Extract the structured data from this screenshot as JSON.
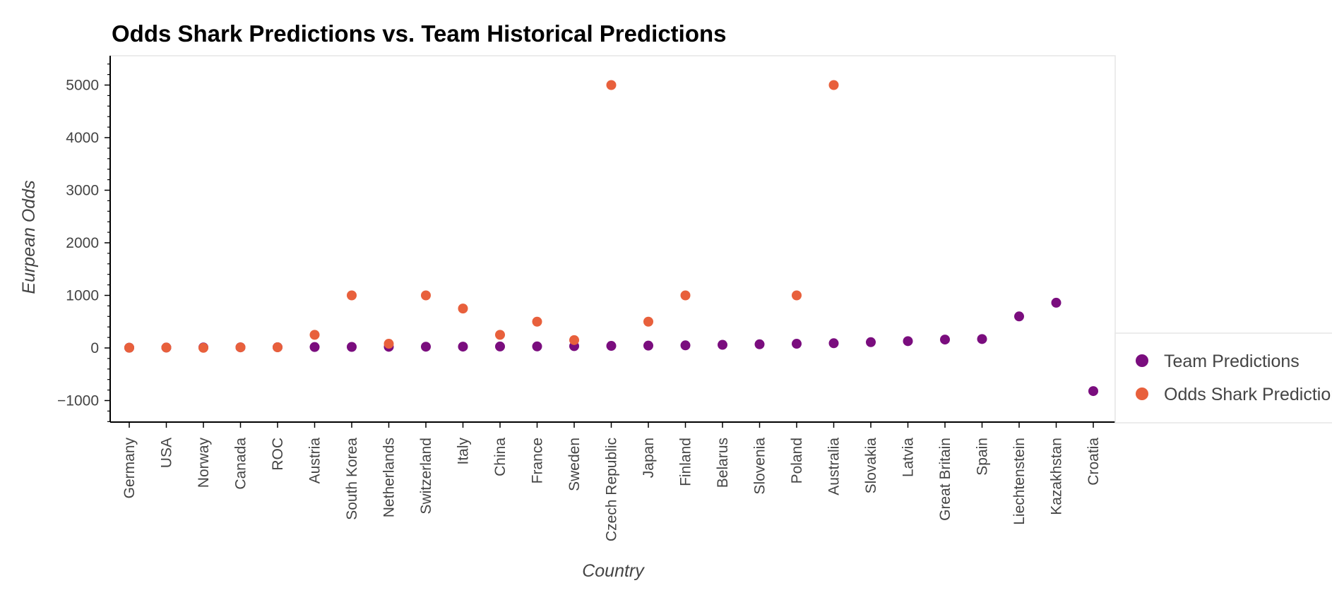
{
  "chart_data": {
    "type": "scatter",
    "title": "Odds Shark Predictions vs. Team Historical Predictions",
    "xlabel": "Country",
    "ylabel": "Eurpean Odds",
    "categories": [
      "Germany",
      "USA",
      "Norway",
      "Canada",
      "ROC",
      "Austria",
      "South Korea",
      "Netherlands",
      "Switzerland",
      "Italy",
      "China",
      "France",
      "Sweden",
      "Czech Republic",
      "Japan",
      "Finland",
      "Belarus",
      "Slovenia",
      "Poland",
      "Australia",
      "Slovakia",
      "Latvia",
      "Great Britain",
      "Spain",
      "Liechtenstein",
      "Kazakhstan",
      "Croatia"
    ],
    "ylim": [
      -1400,
      5560
    ],
    "yticks": [
      -1000,
      0,
      1000,
      2000,
      3000,
      4000,
      5000
    ],
    "ytick_labels": [
      "−1000",
      "0",
      "1000",
      "2000",
      "3000",
      "4000",
      "5000"
    ],
    "grid": false,
    "legend_position": "right",
    "series": [
      {
        "name": "Team Predictions",
        "color": "#7a0d7e",
        "values": [
          5,
          8,
          10,
          12,
          14,
          18,
          20,
          22,
          24,
          26,
          28,
          30,
          35,
          40,
          45,
          50,
          60,
          70,
          80,
          90,
          110,
          130,
          160,
          170,
          600,
          860,
          -820
        ]
      },
      {
        "name": "Odds Shark Predictions",
        "color": "#e8603c",
        "values": [
          5,
          8,
          3,
          12,
          13,
          250,
          1000,
          80,
          1000,
          750,
          250,
          500,
          150,
          5000,
          500,
          1000,
          null,
          null,
          1000,
          5000,
          null,
          null,
          null,
          null,
          null,
          null,
          null
        ]
      }
    ]
  },
  "legend": {
    "items": [
      "Team Predictions",
      "Odds Shark Predictions"
    ]
  }
}
